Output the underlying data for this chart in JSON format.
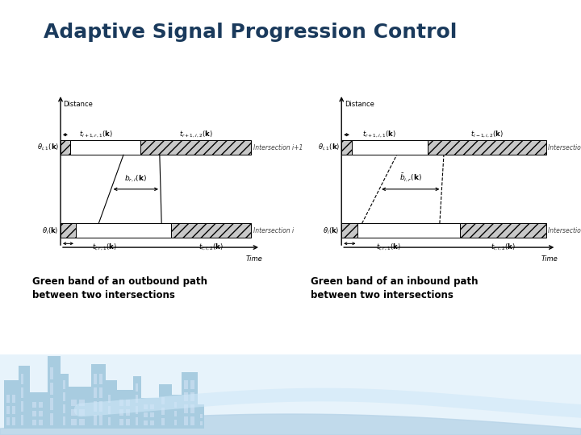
{
  "title": "Adaptive Signal Progression Control",
  "title_fontsize": 18,
  "title_fontweight": "bold",
  "title_color": "#1a3a5c",
  "slide_bg": "#f0f6fc",
  "white_bg": "#ffffff",
  "accent_bar_color": "#1a5cb0",
  "left_caption": "Green band of an outbound path\nbetween two intersections",
  "right_caption": "Green band of an inbound path\nbetween two intersections",
  "caption_fontsize": 8.5,
  "caption_fontweight": "bold",
  "hatch_facecolor": "#c8c8c8",
  "line_color": "#000000",
  "diagram_bg": "#ffffff",
  "city_color": "#a8cce0",
  "city_window": "#c8ddf0",
  "sky_bg": "#d0e8f8"
}
